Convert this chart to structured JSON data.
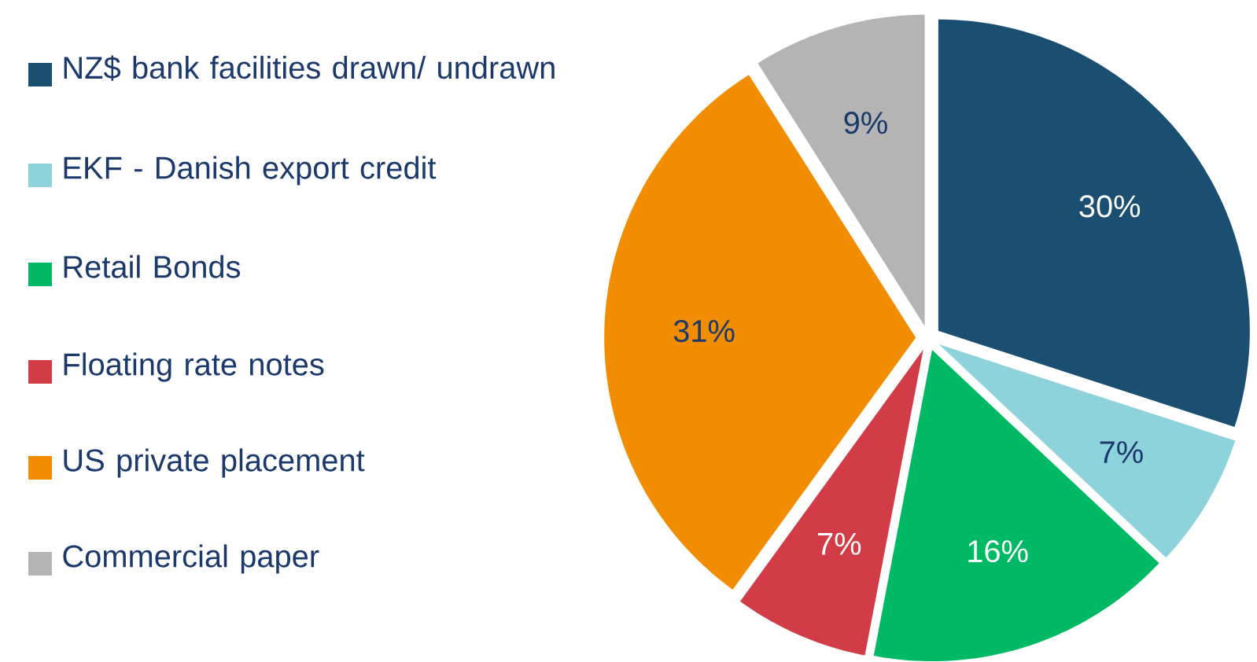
{
  "chart_data": {
    "type": "pie",
    "categories": [
      "NZ$ bank facilities drawn/ undrawn",
      "EKF - Danish export credit",
      "Retail Bonds",
      "Floating rate notes",
      "US private placement",
      "Commercial paper"
    ],
    "values": [
      30,
      7,
      16,
      7,
      31,
      9
    ],
    "value_labels": [
      "30%",
      "7%",
      "16%",
      "7%",
      "31%",
      "9%"
    ],
    "colors": [
      "#1b4f72",
      "#8ed3dc",
      "#00b964",
      "#d23c46",
      "#f28c00",
      "#b4b4b4"
    ],
    "legend": "left"
  }
}
